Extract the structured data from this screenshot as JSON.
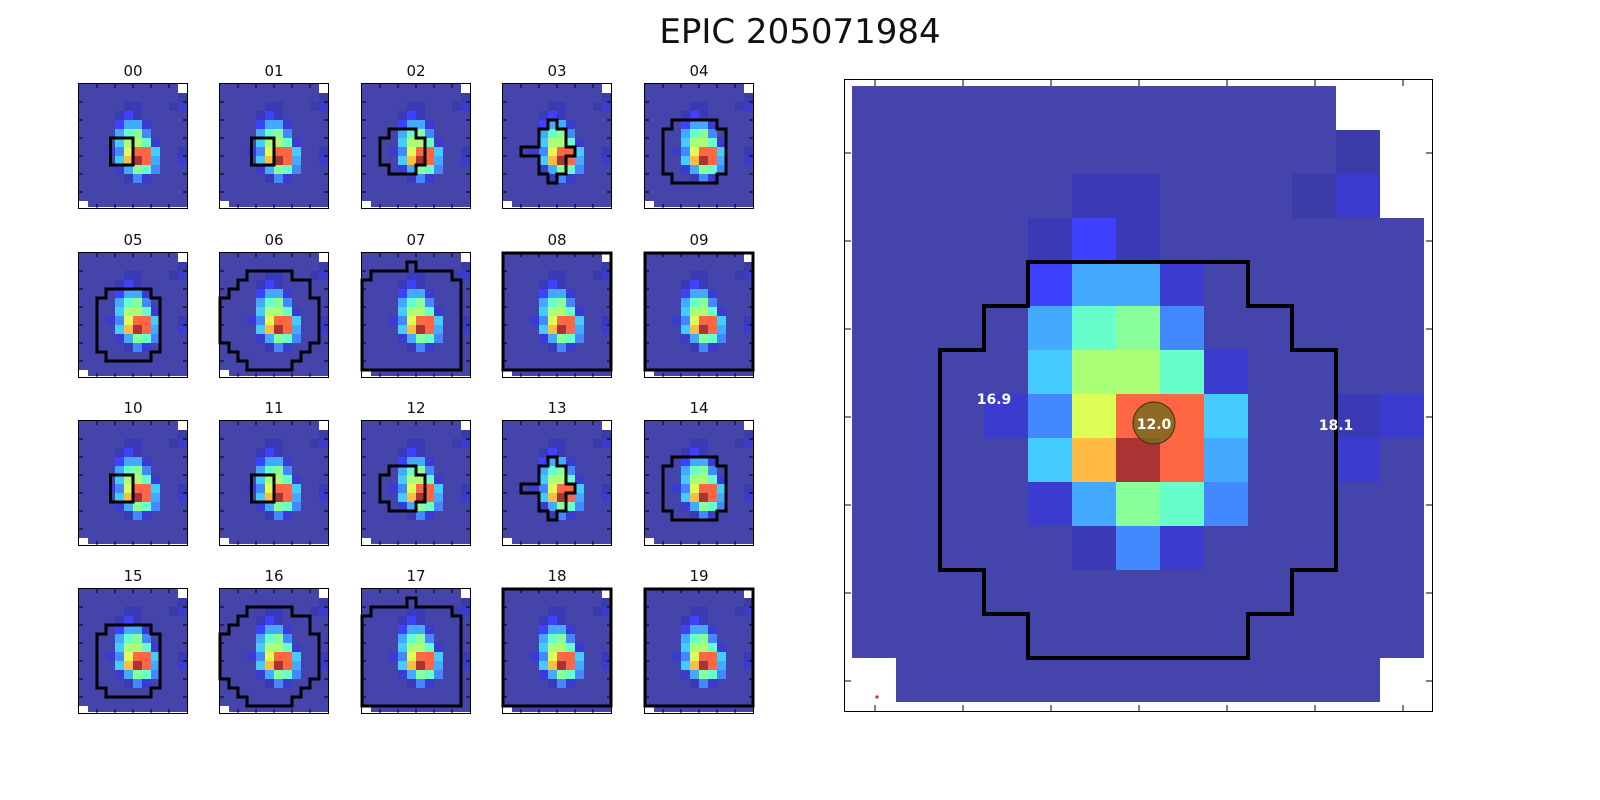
{
  "figure": {
    "title": "EPIC 205071984"
  },
  "colors": {
    "background_blue": "#4444aa",
    "aperture": "#000000",
    "target_marker": "#7a6a1e"
  },
  "thumbnails": {
    "labels": [
      "00",
      "01",
      "02",
      "03",
      "04",
      "05",
      "06",
      "07",
      "08",
      "09",
      "10",
      "11",
      "12",
      "13",
      "14",
      "15",
      "16",
      "17",
      "18",
      "19"
    ]
  },
  "main_panel": {
    "star_labels": [
      {
        "text": "16.9"
      },
      {
        "text": "12.0"
      },
      {
        "text": "18.1"
      }
    ]
  }
}
